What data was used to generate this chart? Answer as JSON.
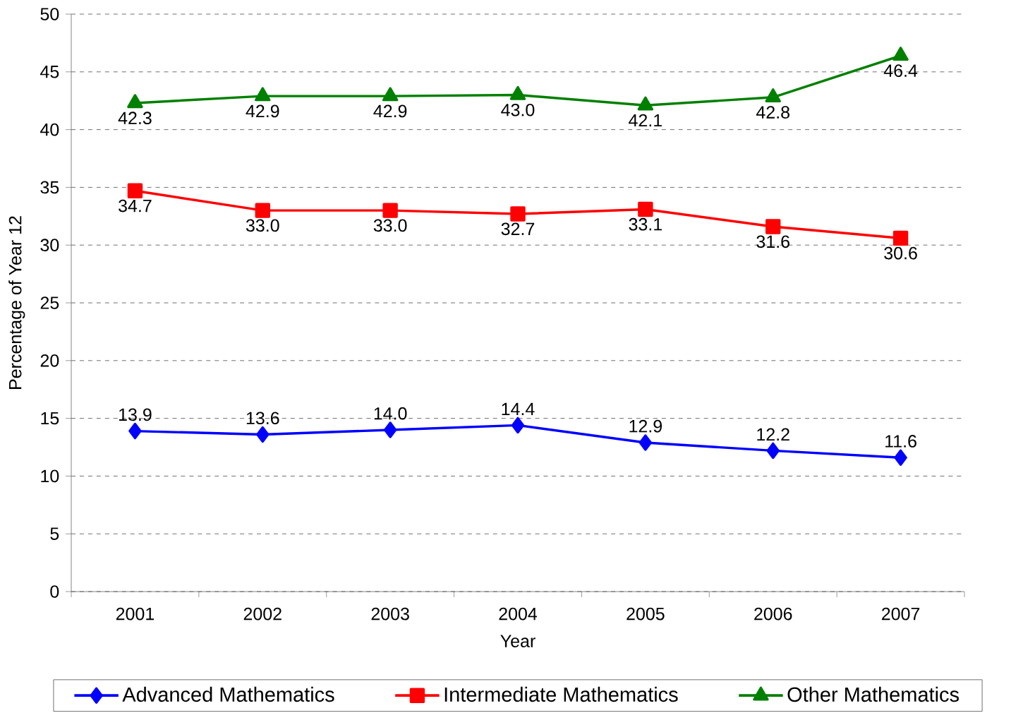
{
  "chart_data": {
    "type": "line",
    "xlabel": "Year",
    "ylabel": "Percentage of Year 12",
    "categories": [
      "2001",
      "2002",
      "2003",
      "2004",
      "2005",
      "2006",
      "2007"
    ],
    "series": [
      {
        "name": "Advanced Mathematics",
        "color": "#0000ff",
        "marker": "diamond",
        "values": [
          13.9,
          13.6,
          14.0,
          14.4,
          12.9,
          12.2,
          11.6
        ],
        "value_labels": [
          "13.9",
          "13.6",
          "14.0",
          "14.4",
          "12.9",
          "12.2",
          "11.6"
        ]
      },
      {
        "name": "Intermediate Mathematics",
        "color": "#ff0000",
        "marker": "square",
        "values": [
          34.7,
          33.0,
          33.0,
          32.7,
          33.1,
          31.6,
          30.6
        ],
        "value_labels": [
          "34.7",
          "33.0",
          "33.0",
          "32.7",
          "33.1",
          "31.6",
          "30.6"
        ]
      },
      {
        "name": "Other Mathematics",
        "color": "#008000",
        "marker": "triangle",
        "values": [
          42.3,
          42.9,
          42.9,
          43.0,
          42.1,
          42.8,
          46.4
        ],
        "value_labels": [
          "42.3",
          "42.9",
          "42.9",
          "43.0",
          "42.1",
          "42.8",
          "46.4"
        ]
      }
    ],
    "ylim": [
      0,
      50
    ],
    "yticks": [
      0,
      5,
      10,
      15,
      20,
      25,
      30,
      35,
      40,
      45,
      50
    ],
    "grid": "y",
    "legend": "bottom",
    "line_style": "solid"
  }
}
